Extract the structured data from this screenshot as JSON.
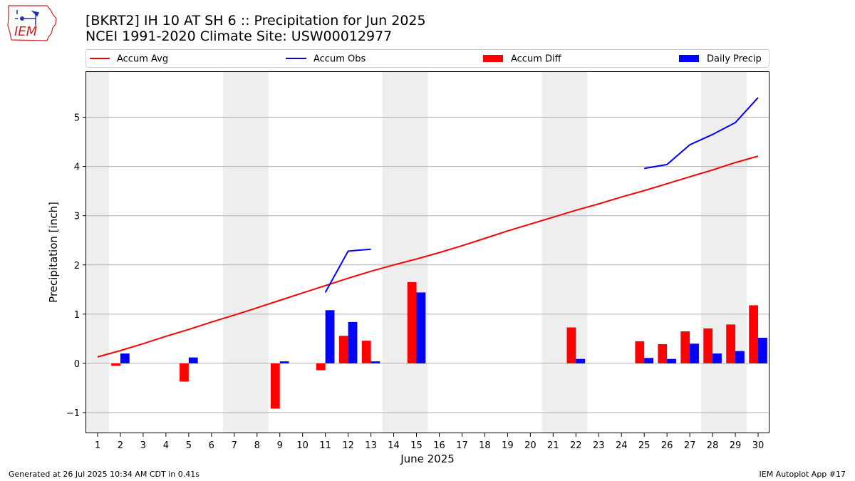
{
  "header": {
    "title_line1": "[BKRT2] IH 10 AT SH 6 :: Precipitation for Jun 2025",
    "title_line2": "NCEI 1991-2020 Climate Site: USW00012977"
  },
  "logo": {
    "text": "IEM",
    "icon": "iowa-state-outline-logo"
  },
  "footer": {
    "generated": "Generated at 26 Jul 2025 10:34 AM CDT in 0.41s",
    "app": "IEM Autoplot App #17"
  },
  "colors": {
    "accum_avg": "#ff0000",
    "accum_obs": "#0000ff",
    "accum_diff": "#ff0000",
    "daily_precip": "#0000ff",
    "weekend_shade": "#eeeeee",
    "grid": "#b0b0b0"
  },
  "chart_data": {
    "type": "bar",
    "xlabel": "June 2025",
    "ylabel": "Precipitation [inch]",
    "xlim": [
      0.5,
      30.5
    ],
    "ylim": [
      -1.42,
      5.92
    ],
    "yticks": [
      -1,
      0,
      1,
      2,
      3,
      4,
      5
    ],
    "ytick_labels": [
      "−1",
      "0",
      "1",
      "2",
      "3",
      "4",
      "5"
    ],
    "days": [
      1,
      2,
      3,
      4,
      5,
      6,
      7,
      8,
      9,
      10,
      11,
      12,
      13,
      14,
      15,
      16,
      17,
      18,
      19,
      20,
      21,
      22,
      23,
      24,
      25,
      26,
      27,
      28,
      29,
      30
    ],
    "grid": "horizontal",
    "legend_position": "top",
    "legend": [
      "Accum Avg",
      "Accum Obs",
      "Accum Diff",
      "Daily Precip"
    ],
    "weekends": [
      [
        0.5,
        1.5
      ],
      [
        6.5,
        8.5
      ],
      [
        13.5,
        15.5
      ],
      [
        20.5,
        22.5
      ],
      [
        27.5,
        29.5
      ]
    ],
    "series": [
      {
        "name": "Accum Avg",
        "kind": "line",
        "values": [
          0.13,
          0.26,
          0.4,
          0.55,
          0.69,
          0.84,
          0.98,
          1.13,
          1.28,
          1.43,
          1.58,
          1.73,
          1.87,
          2.0,
          2.12,
          2.25,
          2.39,
          2.54,
          2.69,
          2.83,
          2.97,
          3.11,
          3.24,
          3.38,
          3.51,
          3.65,
          3.79,
          3.93,
          4.08,
          4.21
        ]
      },
      {
        "name": "Accum Obs",
        "kind": "line",
        "values": [
          null,
          null,
          null,
          null,
          null,
          null,
          null,
          null,
          null,
          null,
          1.44,
          2.28,
          2.32,
          null,
          null,
          null,
          null,
          null,
          null,
          null,
          null,
          null,
          null,
          null,
          3.96,
          4.04,
          4.44,
          4.65,
          4.89,
          5.4
        ]
      },
      {
        "name": "Accum Diff",
        "kind": "bar",
        "values": [
          null,
          -0.05,
          null,
          null,
          -0.37,
          null,
          null,
          null,
          -0.92,
          null,
          -0.14,
          0.56,
          0.46,
          null,
          1.65,
          null,
          null,
          null,
          null,
          null,
          null,
          0.73,
          null,
          null,
          0.45,
          0.39,
          0.65,
          0.71,
          0.79,
          1.18
        ]
      },
      {
        "name": "Daily Precip",
        "kind": "bar",
        "values": [
          null,
          0.2,
          null,
          null,
          0.12,
          null,
          null,
          null,
          0.04,
          null,
          1.08,
          0.84,
          0.04,
          null,
          1.44,
          null,
          null,
          null,
          null,
          null,
          null,
          0.09,
          null,
          null,
          0.11,
          0.09,
          0.4,
          0.2,
          0.25,
          0.52
        ]
      }
    ]
  }
}
